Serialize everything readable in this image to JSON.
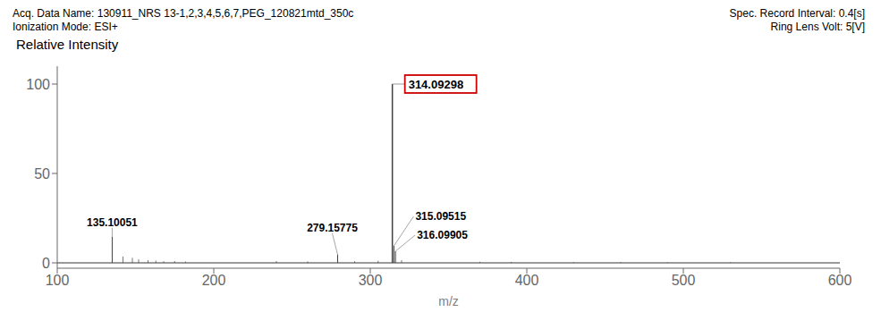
{
  "chart_data": {
    "type": "stem",
    "title": "Acq. Data Name: 130911_NRS 13-1,2,3,4,5,6,7,PEG_120821mtd_350c",
    "subtitle": "Ionization Mode: ESI+",
    "annotations": [
      "Spec. Record Interval: 0.4[s]",
      "Ring Lens Volt: 5[V]"
    ],
    "x_label": "m/z",
    "y_label": "Relative Intensity",
    "xlim": [
      100,
      600
    ],
    "ylim": [
      -3,
      110
    ],
    "xticks": [
      100,
      200,
      300,
      400,
      500,
      600
    ],
    "yticks": [
      0,
      50,
      100
    ],
    "grid": false,
    "series": [
      {
        "x": [
          135.10051,
          279.15775,
          314.09298,
          315.09515,
          316.09905
        ],
        "values": [
          14.5,
          4.5,
          100.0,
          9.5,
          6.5
        ],
        "labels": [
          "135.10051",
          "279.15775",
          "314.09298",
          "315.09515",
          "316.09905"
        ],
        "boxed": [
          false,
          false,
          true,
          false,
          false
        ],
        "color": "#404040",
        "box_color": "#cc0000"
      },
      {
        "x": [
          142,
          148,
          152,
          158,
          163,
          168,
          175,
          182,
          240,
          260,
          290,
          305,
          320,
          370,
          390,
          430,
          460,
          490,
          530
        ],
        "values": [
          3.5,
          2.8,
          2.0,
          1.5,
          1.2,
          0.9,
          1.0,
          0.7,
          1.0,
          0.8,
          0.9,
          1.2,
          1.5,
          0.6,
          0.5,
          0.4,
          0.4,
          0.3,
          0.3
        ],
        "color": "#404040"
      }
    ]
  }
}
